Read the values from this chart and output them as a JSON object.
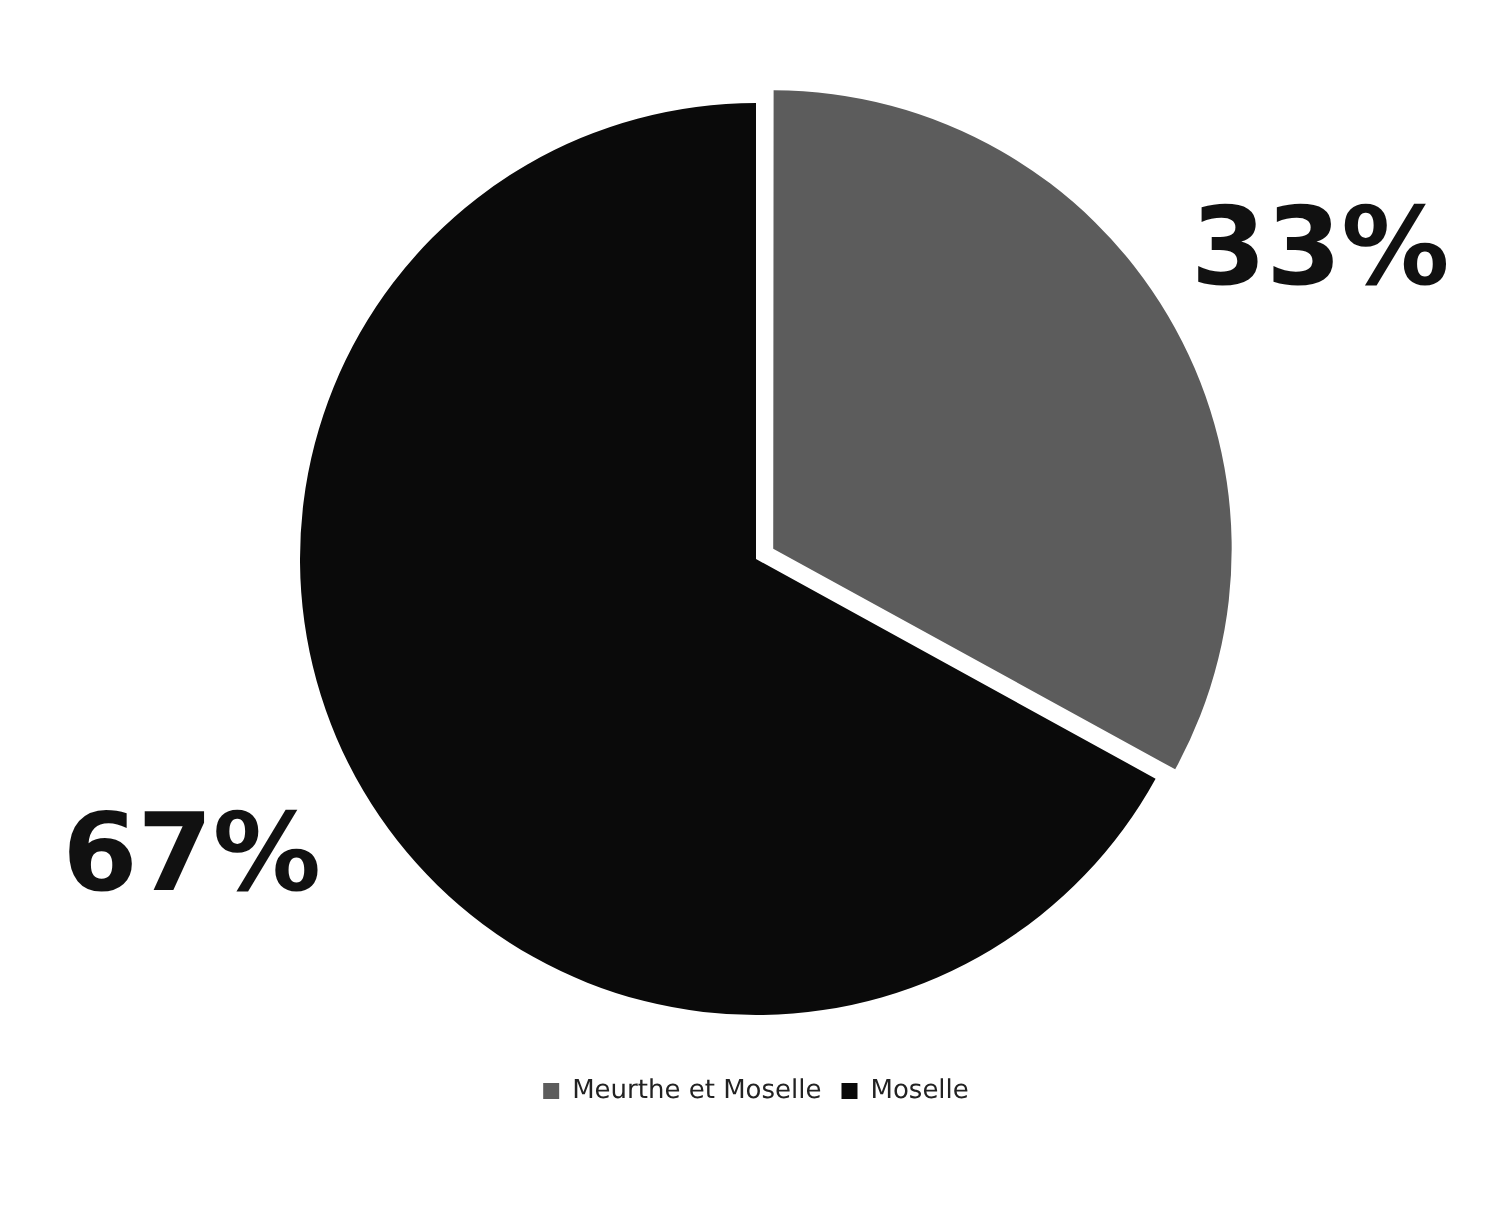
{
  "chart_data": {
    "type": "pie",
    "categories": [
      "Meurthe et Moselle",
      "Moselle"
    ],
    "values": [
      33,
      67
    ],
    "colors": [
      "#5c5c5c",
      "#0a0a0a"
    ],
    "value_labels": [
      "33%",
      "67%"
    ],
    "legend": "bottom"
  }
}
